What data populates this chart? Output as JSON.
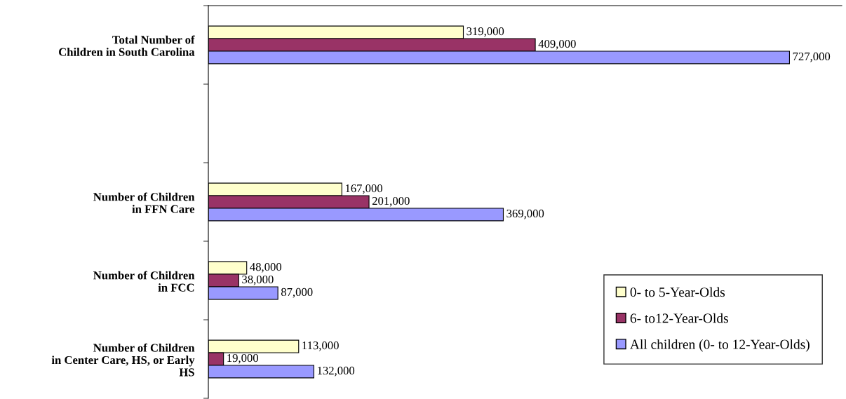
{
  "chart_data": {
    "type": "bar",
    "orientation": "horizontal",
    "categories": [
      "Total Number of\nChildren in South Carolina",
      null,
      "Number of Children\nin FFN Care",
      "Number of Children\nin FCC",
      "Number of Children\nin Center Care, HS, or Early\nHS"
    ],
    "series": [
      {
        "name": "0- to 5-Year-Olds",
        "color": "#ffffcc",
        "values": [
          319000,
          null,
          167000,
          48000,
          113000
        ],
        "value_labels": [
          "319,000",
          null,
          "167,000",
          "48,000",
          "113,000"
        ]
      },
      {
        "name": "6- to12-Year-Olds",
        "color": "#993366",
        "values": [
          409000,
          null,
          201000,
          38000,
          19000
        ],
        "value_labels": [
          "409,000",
          null,
          "201,000",
          "38,000",
          "19,000"
        ]
      },
      {
        "name": "All children (0- to 12-Year-Olds)",
        "color": "#9999ff",
        "values": [
          727000,
          null,
          369000,
          87000,
          132000
        ],
        "value_labels": [
          "727,000",
          null,
          "369,000",
          "87,000",
          "132,000"
        ]
      }
    ],
    "legend": "bottom right",
    "tick_labels": "y"
  }
}
